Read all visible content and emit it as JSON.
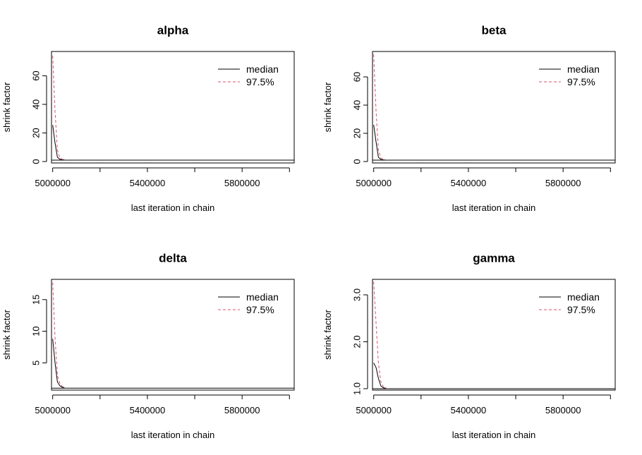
{
  "chart_data": [
    {
      "type": "line",
      "title": "alpha",
      "xlabel": "last iteration in chain",
      "ylabel": "shrink factor",
      "xlim": [
        4995000,
        6020000
      ],
      "ylim": [
        -1,
        77
      ],
      "x_ticks": [
        5000000,
        5200000,
        5400000,
        5600000,
        5800000,
        6000000
      ],
      "x_tick_labels": [
        "5000000",
        "5400000",
        "5800000"
      ],
      "y_ticks": [
        0,
        20,
        40,
        60
      ],
      "y_tick_labels": [
        "0",
        "20",
        "40",
        "60"
      ],
      "reference_line": 1,
      "legend": {
        "position": "top-right",
        "entries": [
          "median",
          "97.5%"
        ]
      },
      "series": [
        {
          "name": "median",
          "color": "#000000",
          "dash": "solid",
          "x": [
            5000000,
            5010000,
            5020000,
            5030000,
            5040000,
            5050000
          ],
          "values": [
            25.5,
            13,
            3,
            1.6,
            1.2,
            1.1
          ]
        },
        {
          "name": "97.5%",
          "color": "#DF536B",
          "dash": "dashed",
          "x": [
            5000000,
            5010000,
            5020000,
            5030000,
            5040000,
            5050000
          ],
          "values": [
            74,
            35,
            8,
            2.6,
            1.6,
            1.3
          ]
        }
      ]
    },
    {
      "type": "line",
      "title": "beta",
      "xlabel": "last iteration in chain",
      "ylabel": "shrink factor",
      "xlim": [
        4995000,
        6020000
      ],
      "ylim": [
        -1,
        78
      ],
      "x_ticks": [
        5000000,
        5200000,
        5400000,
        5600000,
        5800000,
        6000000
      ],
      "x_tick_labels": [
        "5000000",
        "5400000",
        "5800000"
      ],
      "y_ticks": [
        0,
        20,
        40,
        60
      ],
      "y_tick_labels": [
        "0",
        "20",
        "40",
        "60"
      ],
      "reference_line": 1,
      "legend": {
        "position": "top-right",
        "entries": [
          "median",
          "97.5%"
        ]
      },
      "series": [
        {
          "name": "median",
          "color": "#000000",
          "dash": "solid",
          "x": [
            5000000,
            5010000,
            5020000,
            5030000,
            5040000,
            5050000
          ],
          "values": [
            26,
            14,
            3,
            1.6,
            1.2,
            1.1
          ]
        },
        {
          "name": "97.5%",
          "color": "#DF536B",
          "dash": "dashed",
          "x": [
            5000000,
            5010000,
            5020000,
            5030000,
            5040000,
            5050000
          ],
          "values": [
            76,
            36,
            8,
            2.6,
            1.6,
            1.3
          ]
        }
      ]
    },
    {
      "type": "line",
      "title": "delta",
      "xlabel": "last iteration in chain",
      "ylabel": "shrink factor",
      "xlim": [
        4995000,
        6020000
      ],
      "ylim": [
        0.7,
        18.2
      ],
      "x_ticks": [
        5000000,
        5200000,
        5400000,
        5600000,
        5800000,
        6000000
      ],
      "x_tick_labels": [
        "5000000",
        "5400000",
        "5800000"
      ],
      "y_ticks": [
        5,
        10,
        15
      ],
      "y_tick_labels": [
        "5",
        "10",
        "15"
      ],
      "reference_line": 1,
      "legend": {
        "position": "top-right",
        "entries": [
          "median",
          "97.5%"
        ]
      },
      "series": [
        {
          "name": "median",
          "color": "#000000",
          "dash": "solid",
          "x": [
            5000000,
            5010000,
            5020000,
            5030000,
            5040000,
            5050000
          ],
          "values": [
            8.8,
            5,
            2,
            1.4,
            1.15,
            1.05
          ]
        },
        {
          "name": "97.5%",
          "color": "#DF536B",
          "dash": "dashed",
          "x": [
            5000000,
            5010000,
            5020000,
            5030000,
            5040000,
            5050000
          ],
          "values": [
            17.7,
            9,
            3,
            1.8,
            1.3,
            1.15
          ]
        }
      ]
    },
    {
      "type": "line",
      "title": "gamma",
      "xlabel": "last iteration in chain",
      "ylabel": "shrink factor",
      "xlim": [
        4995000,
        6020000
      ],
      "ylim": [
        0.97,
        3.33
      ],
      "x_ticks": [
        5000000,
        5200000,
        5400000,
        5600000,
        5800000,
        6000000
      ],
      "x_tick_labels": [
        "5000000",
        "5400000",
        "5800000"
      ],
      "y_ticks": [
        1.0,
        2.0,
        3.0
      ],
      "y_tick_labels": [
        "1.0",
        "2.0",
        "3.0"
      ],
      "reference_line": 1,
      "legend": {
        "position": "top-right",
        "entries": [
          "median",
          "97.5%"
        ]
      },
      "series": [
        {
          "name": "median",
          "color": "#000000",
          "dash": "solid",
          "x": [
            5000000,
            5010000,
            5020000,
            5030000,
            5040000,
            5050000,
            5060000
          ],
          "values": [
            1.55,
            1.45,
            1.22,
            1.06,
            1.02,
            1.01,
            1.0
          ]
        },
        {
          "name": "97.5%",
          "color": "#DF536B",
          "dash": "dashed",
          "x": [
            5000000,
            5010000,
            5020000,
            5030000,
            5040000,
            5050000,
            5060000
          ],
          "values": [
            3.28,
            2.4,
            1.55,
            1.15,
            1.05,
            1.02,
            1.0
          ]
        }
      ]
    }
  ]
}
